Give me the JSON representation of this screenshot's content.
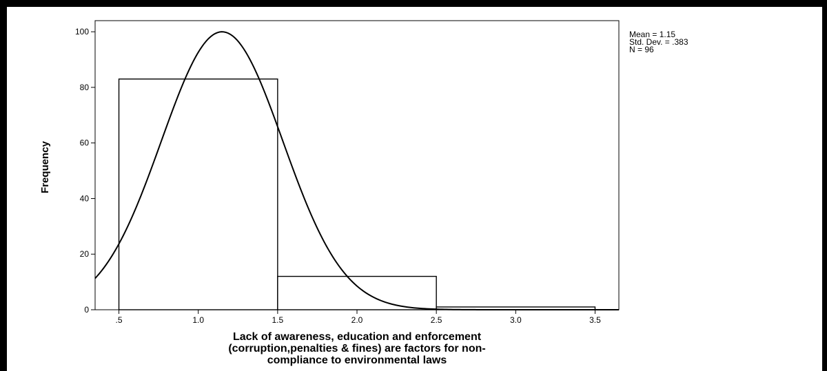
{
  "chart_data": {
    "type": "bar",
    "title": "",
    "ylabel": "Frequency",
    "xlabel_lines": [
      "Lack of awareness, education and enforcement",
      "(corruption,penalties & fines) are factors for non-",
      "compliance to environmental laws"
    ],
    "bins": [
      {
        "start": 0.5,
        "end": 1.5,
        "value": 83
      },
      {
        "start": 1.5,
        "end": 2.5,
        "value": 12
      },
      {
        "start": 2.5,
        "end": 3.5,
        "value": 1
      }
    ],
    "xlim": [
      0.35,
      3.65
    ],
    "ylim": [
      0,
      104
    ],
    "xticks": [
      0.5,
      1.0,
      1.5,
      2.0,
      2.5,
      3.0,
      3.5
    ],
    "xtick_labels": [
      ".5",
      "1.0",
      "1.5",
      "2.0",
      "2.5",
      "3.0",
      "3.5"
    ],
    "yticks": [
      0,
      20,
      40,
      60,
      80,
      100
    ],
    "ytick_labels": [
      "0",
      "20",
      "40",
      "60",
      "80",
      "100"
    ],
    "normal_curve": {
      "mean": 1.15,
      "sd": 0.383,
      "n": 96,
      "bin_width": 1.0
    },
    "stats_text": [
      "Mean = 1.15",
      "Std. Dev. = .383",
      "N = 96"
    ]
  }
}
